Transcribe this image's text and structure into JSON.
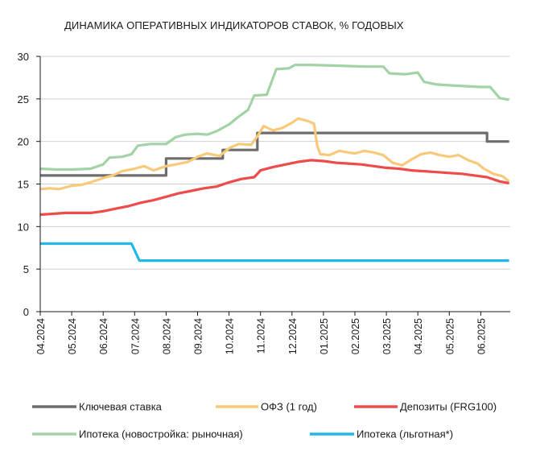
{
  "chart_data": {
    "type": "line",
    "title": "ДИНАМИКА ОПЕРАТИВНЫХ ИНДИКАТОРОВ СТАВОК, % ГОДОВЫХ",
    "xlabel": "",
    "ylabel": "",
    "ylim": [
      0,
      30
    ],
    "yticks": [
      0,
      5,
      10,
      15,
      20,
      25,
      30
    ],
    "xlim": [
      0,
      14.9
    ],
    "xticks": [
      {
        "pos": 0,
        "label": "04.2024"
      },
      {
        "pos": 1,
        "label": "05.2024"
      },
      {
        "pos": 2,
        "label": "06.2024"
      },
      {
        "pos": 3,
        "label": "07.2024"
      },
      {
        "pos": 4,
        "label": "08.2024"
      },
      {
        "pos": 5,
        "label": "09.2024"
      },
      {
        "pos": 6,
        "label": "10.2024"
      },
      {
        "pos": 7,
        "label": "11.2024"
      },
      {
        "pos": 8,
        "label": "12.2024"
      },
      {
        "pos": 9,
        "label": "01.2025"
      },
      {
        "pos": 10,
        "label": "02.2025"
      },
      {
        "pos": 11,
        "label": "03.2025"
      },
      {
        "pos": 12,
        "label": "04.2025"
      },
      {
        "pos": 13,
        "label": "05.2025"
      },
      {
        "pos": 14,
        "label": "06.2025"
      }
    ],
    "grid": "horizontal",
    "legend": "bottom",
    "series": [
      {
        "name": "Ключевая ставка",
        "color": "#6d6d6d",
        "step": true,
        "points": [
          [
            0,
            16
          ],
          [
            4,
            16
          ],
          [
            4,
            18
          ],
          [
            5.8,
            18
          ],
          [
            5.8,
            19
          ],
          [
            6.9,
            19
          ],
          [
            6.9,
            21
          ],
          [
            14.2,
            21
          ],
          [
            14.2,
            20
          ],
          [
            14.9,
            20
          ]
        ]
      },
      {
        "name": "ОФЗ (1 год)",
        "color": "#f9c97a",
        "step": false,
        "points": [
          [
            0,
            14.4
          ],
          [
            0.3,
            14.5
          ],
          [
            0.6,
            14.4
          ],
          [
            1,
            14.8
          ],
          [
            1.3,
            14.9
          ],
          [
            1.6,
            15.2
          ],
          [
            2,
            15.7
          ],
          [
            2.3,
            16
          ],
          [
            2.6,
            16.5
          ],
          [
            3,
            16.8
          ],
          [
            3.3,
            17.1
          ],
          [
            3.6,
            16.6
          ],
          [
            4,
            17.1
          ],
          [
            4.3,
            17.3
          ],
          [
            4.7,
            17.6
          ],
          [
            5,
            18.2
          ],
          [
            5.3,
            18.6
          ],
          [
            5.7,
            18.3
          ],
          [
            6,
            19.2
          ],
          [
            6.3,
            19.7
          ],
          [
            6.7,
            19.6
          ],
          [
            6.9,
            20.6
          ],
          [
            7.1,
            21.8
          ],
          [
            7.4,
            21.3
          ],
          [
            7.7,
            21.6
          ],
          [
            8,
            22.2
          ],
          [
            8.2,
            22.7
          ],
          [
            8.5,
            22.4
          ],
          [
            8.7,
            22.1
          ],
          [
            8.8,
            19.5
          ],
          [
            8.9,
            18.5
          ],
          [
            9.2,
            18.4
          ],
          [
            9.5,
            18.9
          ],
          [
            9.8,
            18.7
          ],
          [
            10,
            18.6
          ],
          [
            10.3,
            18.9
          ],
          [
            10.6,
            18.7
          ],
          [
            10.9,
            18.4
          ],
          [
            11.2,
            17.5
          ],
          [
            11.5,
            17.2
          ],
          [
            11.8,
            17.9
          ],
          [
            12.1,
            18.5
          ],
          [
            12.4,
            18.7
          ],
          [
            12.7,
            18.4
          ],
          [
            13,
            18.2
          ],
          [
            13.3,
            18.4
          ],
          [
            13.6,
            17.8
          ],
          [
            13.9,
            17.4
          ],
          [
            14.1,
            16.8
          ],
          [
            14.4,
            16.2
          ],
          [
            14.7,
            15.9
          ],
          [
            14.9,
            15.3
          ]
        ]
      },
      {
        "name": "Депозиты (FRG100)",
        "color": "#ee4b4b",
        "step": false,
        "points": [
          [
            0,
            11.4
          ],
          [
            0.4,
            11.5
          ],
          [
            0.8,
            11.6
          ],
          [
            1.2,
            11.6
          ],
          [
            1.6,
            11.6
          ],
          [
            2,
            11.8
          ],
          [
            2.4,
            12.1
          ],
          [
            2.8,
            12.4
          ],
          [
            3.2,
            12.8
          ],
          [
            3.6,
            13.1
          ],
          [
            4,
            13.5
          ],
          [
            4.4,
            13.9
          ],
          [
            4.8,
            14.2
          ],
          [
            5.2,
            14.5
          ],
          [
            5.6,
            14.7
          ],
          [
            6,
            15.2
          ],
          [
            6.4,
            15.6
          ],
          [
            6.8,
            15.8
          ],
          [
            7,
            16.6
          ],
          [
            7.4,
            17
          ],
          [
            7.8,
            17.3
          ],
          [
            8.2,
            17.6
          ],
          [
            8.6,
            17.8
          ],
          [
            9,
            17.7
          ],
          [
            9.4,
            17.5
          ],
          [
            9.8,
            17.4
          ],
          [
            10.2,
            17.3
          ],
          [
            10.6,
            17.1
          ],
          [
            11,
            16.9
          ],
          [
            11.4,
            16.8
          ],
          [
            11.8,
            16.6
          ],
          [
            12.2,
            16.5
          ],
          [
            12.6,
            16.4
          ],
          [
            13,
            16.3
          ],
          [
            13.4,
            16.2
          ],
          [
            13.8,
            16
          ],
          [
            14.2,
            15.8
          ],
          [
            14.6,
            15.3
          ],
          [
            14.9,
            15.1
          ]
        ]
      },
      {
        "name": "Ипотека (новостройка: рыночная)",
        "color": "#a3d3a5",
        "step": false,
        "points": [
          [
            0,
            16.8
          ],
          [
            0.5,
            16.7
          ],
          [
            1,
            16.7
          ],
          [
            1.6,
            16.8
          ],
          [
            2,
            17.3
          ],
          [
            2.2,
            18.1
          ],
          [
            2.6,
            18.2
          ],
          [
            2.9,
            18.5
          ],
          [
            3.1,
            19.5
          ],
          [
            3.5,
            19.7
          ],
          [
            4,
            19.7
          ],
          [
            4.3,
            20.5
          ],
          [
            4.6,
            20.8
          ],
          [
            5,
            20.9
          ],
          [
            5.3,
            20.8
          ],
          [
            5.6,
            21.2
          ],
          [
            6,
            22
          ],
          [
            6.3,
            22.9
          ],
          [
            6.6,
            23.7
          ],
          [
            6.8,
            25.4
          ],
          [
            7.2,
            25.5
          ],
          [
            7.5,
            28.5
          ],
          [
            7.9,
            28.6
          ],
          [
            8.1,
            29
          ],
          [
            8.6,
            29
          ],
          [
            9.5,
            28.9
          ],
          [
            10.3,
            28.8
          ],
          [
            10.9,
            28.8
          ],
          [
            11.1,
            28
          ],
          [
            11.6,
            27.9
          ],
          [
            12,
            28.1
          ],
          [
            12.2,
            27
          ],
          [
            12.6,
            26.7
          ],
          [
            13,
            26.6
          ],
          [
            13.5,
            26.5
          ],
          [
            14,
            26.4
          ],
          [
            14.3,
            26.4
          ],
          [
            14.6,
            25.1
          ],
          [
            14.9,
            24.9
          ]
        ]
      },
      {
        "name": "Ипотека (льготная*)",
        "color": "#22b7e6",
        "step": true,
        "points": [
          [
            0,
            8
          ],
          [
            2.9,
            8
          ],
          [
            3.15,
            6
          ],
          [
            14.9,
            6
          ]
        ]
      }
    ]
  }
}
